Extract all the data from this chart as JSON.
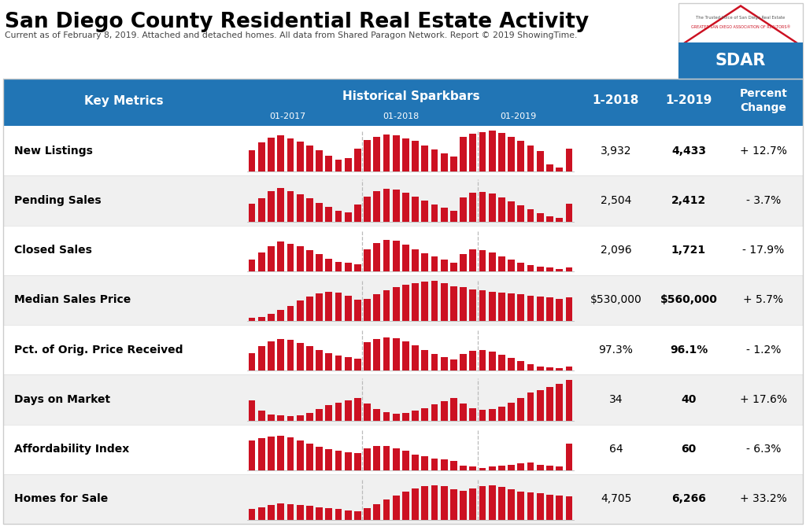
{
  "title": "San Diego County Residential Real Estate Activity",
  "subtitle": "Current as of February 8, 2019. Attached and detached homes. All data from Shared Paragon Network. Report © 2019 ShowingTime.",
  "header_bg": "#2175b5",
  "header_text_color": "#ffffff",
  "col_key_metrics": "Key Metrics",
  "col_sparkbars": "Historical Sparkbars",
  "col_2018": "1-2018",
  "col_2019": "1-2019",
  "col_pct": "Percent\nChange",
  "sparkbar_labels": [
    "01-2017",
    "01-2018",
    "01-2019"
  ],
  "metrics": [
    {
      "name": "New Listings",
      "val_2018": "3,932",
      "val_2019": "4,433",
      "pct_change": "+ 12.7%",
      "sparkbars": [
        0.52,
        0.7,
        0.82,
        0.87,
        0.8,
        0.72,
        0.62,
        0.52,
        0.38,
        0.28,
        0.32,
        0.55,
        0.75,
        0.83,
        0.88,
        0.87,
        0.8,
        0.73,
        0.63,
        0.53,
        0.43,
        0.36,
        0.83,
        0.9,
        0.95,
        0.98,
        0.92,
        0.83,
        0.73,
        0.62,
        0.5,
        0.18,
        0.1,
        0.55
      ],
      "row_bg": "#ffffff"
    },
    {
      "name": "Pending Sales",
      "val_2018": "2,504",
      "val_2019": "2,412",
      "pct_change": "- 3.7%",
      "sparkbars": [
        0.42,
        0.55,
        0.72,
        0.8,
        0.72,
        0.65,
        0.55,
        0.45,
        0.35,
        0.26,
        0.22,
        0.4,
        0.6,
        0.73,
        0.78,
        0.76,
        0.68,
        0.6,
        0.5,
        0.4,
        0.33,
        0.26,
        0.58,
        0.68,
        0.7,
        0.66,
        0.58,
        0.48,
        0.38,
        0.3,
        0.2,
        0.13,
        0.08,
        0.42
      ],
      "row_bg": "#f0f0f0"
    },
    {
      "name": "Closed Sales",
      "val_2018": "2,096",
      "val_2019": "1,721",
      "pct_change": "- 17.9%",
      "sparkbars": [
        0.28,
        0.45,
        0.6,
        0.7,
        0.65,
        0.6,
        0.5,
        0.4,
        0.3,
        0.22,
        0.2,
        0.16,
        0.52,
        0.68,
        0.75,
        0.72,
        0.63,
        0.53,
        0.42,
        0.36,
        0.28,
        0.2,
        0.4,
        0.52,
        0.5,
        0.45,
        0.36,
        0.28,
        0.2,
        0.15,
        0.1,
        0.08,
        0.06,
        0.08
      ],
      "row_bg": "#ffffff"
    },
    {
      "name": "Median Sales Price",
      "val_2018": "$530,000",
      "val_2019": "$560,000",
      "pct_change": "+ 5.7%",
      "sparkbars": [
        0.08,
        0.1,
        0.16,
        0.26,
        0.36,
        0.48,
        0.58,
        0.66,
        0.7,
        0.68,
        0.6,
        0.5,
        0.53,
        0.63,
        0.73,
        0.8,
        0.86,
        0.9,
        0.93,
        0.96,
        0.9,
        0.83,
        0.8,
        0.76,
        0.73,
        0.7,
        0.68,
        0.66,
        0.63,
        0.6,
        0.58,
        0.56,
        0.53,
        0.56
      ],
      "row_bg": "#f0f0f0"
    },
    {
      "name": "Pct. of Orig. Price Received",
      "val_2018": "97.3%",
      "val_2019": "96.1%",
      "pct_change": "- 1.2%",
      "sparkbars": [
        0.42,
        0.58,
        0.7,
        0.76,
        0.73,
        0.66,
        0.58,
        0.5,
        0.42,
        0.36,
        0.32,
        0.28,
        0.68,
        0.76,
        0.8,
        0.78,
        0.7,
        0.6,
        0.5,
        0.4,
        0.32,
        0.26,
        0.4,
        0.48,
        0.5,
        0.46,
        0.38,
        0.3,
        0.23,
        0.16,
        0.1,
        0.08,
        0.06,
        0.1
      ],
      "row_bg": "#ffffff"
    },
    {
      "name": "Days on Market",
      "val_2018": "34",
      "val_2019": "40",
      "pct_change": "+ 17.6%",
      "sparkbars": [
        0.48,
        0.23,
        0.15,
        0.12,
        0.1,
        0.12,
        0.18,
        0.28,
        0.36,
        0.43,
        0.48,
        0.53,
        0.4,
        0.28,
        0.2,
        0.16,
        0.18,
        0.23,
        0.3,
        0.38,
        0.46,
        0.53,
        0.4,
        0.3,
        0.26,
        0.28,
        0.33,
        0.43,
        0.53,
        0.66,
        0.73,
        0.8,
        0.88,
        0.96
      ],
      "row_bg": "#f0f0f0"
    },
    {
      "name": "Affordability Index",
      "val_2018": "64",
      "val_2019": "60",
      "pct_change": "- 6.3%",
      "sparkbars": [
        0.7,
        0.76,
        0.8,
        0.83,
        0.78,
        0.7,
        0.63,
        0.56,
        0.5,
        0.46,
        0.43,
        0.4,
        0.53,
        0.58,
        0.58,
        0.53,
        0.46,
        0.38,
        0.33,
        0.28,
        0.26,
        0.23,
        0.1,
        0.08,
        0.06,
        0.08,
        0.1,
        0.13,
        0.16,
        0.18,
        0.13,
        0.1,
        0.08,
        0.63
      ],
      "row_bg": "#ffffff"
    },
    {
      "name": "Homes for Sale",
      "val_2018": "4,705",
      "val_2019": "6,266",
      "pct_change": "+ 33.2%",
      "sparkbars": [
        0.26,
        0.3,
        0.36,
        0.4,
        0.38,
        0.36,
        0.33,
        0.3,
        0.28,
        0.26,
        0.23,
        0.2,
        0.28,
        0.38,
        0.48,
        0.58,
        0.68,
        0.76,
        0.8,
        0.83,
        0.8,
        0.73,
        0.7,
        0.76,
        0.8,
        0.83,
        0.78,
        0.73,
        0.68,
        0.66,
        0.63,
        0.6,
        0.58,
        0.56
      ],
      "row_bg": "#f0f0f0"
    }
  ],
  "bar_color": "#cc1122",
  "fig_width": 10.24,
  "fig_height": 6.7,
  "dpi": 100
}
